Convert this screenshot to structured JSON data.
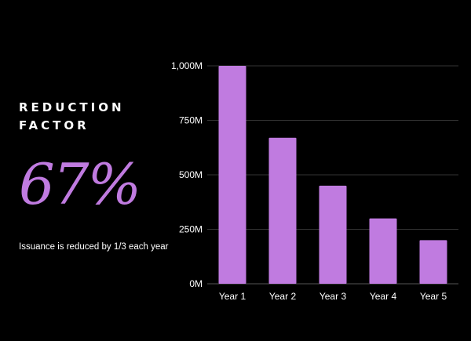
{
  "panel": {
    "heading_line1": "REDUCTION",
    "heading_line2": "FACTOR",
    "big_value": "67%",
    "caption": "Issuance is reduced by 1/3 each year"
  },
  "colors": {
    "background": "#000000",
    "bar": "#c07be0",
    "accent_text": "#c07be0",
    "grid": "#333333",
    "text": "#ffffff"
  },
  "chart_data": {
    "type": "bar",
    "title": "",
    "xlabel": "",
    "ylabel": "",
    "categories": [
      "Year 1",
      "Year 2",
      "Year 3",
      "Year 4",
      "Year 5"
    ],
    "values": [
      1000,
      670,
      450,
      300,
      200
    ],
    "unit_suffix": "M",
    "ylim": [
      0,
      1000
    ],
    "yticks": [
      0,
      250,
      500,
      750,
      1000
    ],
    "ytick_labels": [
      "0M",
      "250M",
      "500M",
      "750M",
      "1,000M"
    ],
    "grid": true,
    "legend": "none"
  }
}
